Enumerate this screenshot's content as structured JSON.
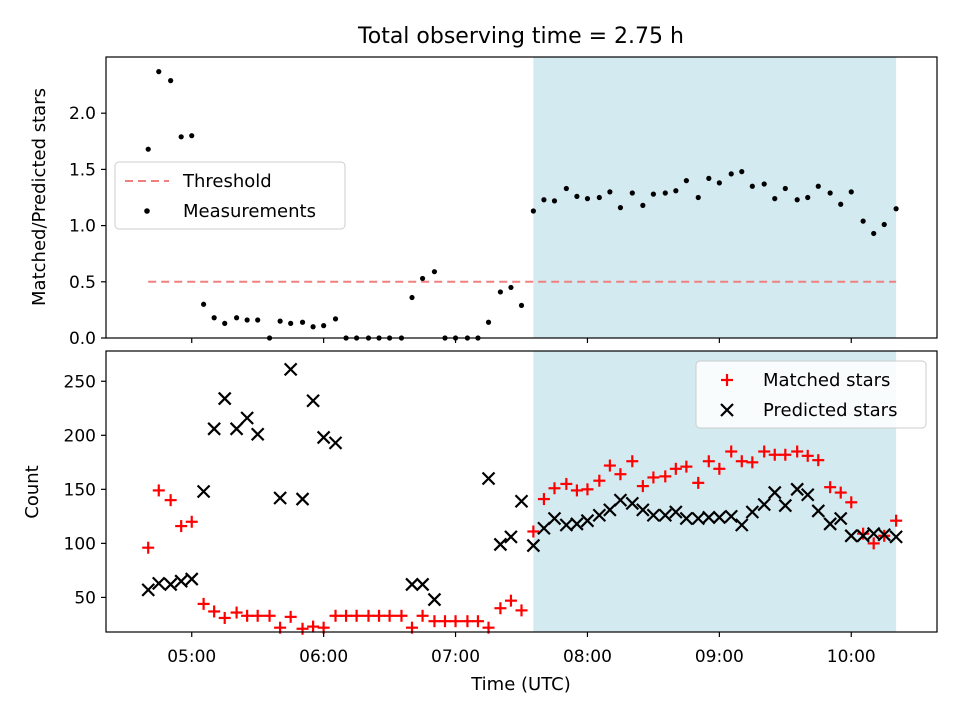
{
  "chart_data": {
    "title": "Total observing time = 2.75 h",
    "xlabel": "Time (UTC)",
    "x_ticks": [
      "05:00",
      "06:00",
      "07:00",
      "08:00",
      "09:00",
      "10:00"
    ],
    "x_tick_hours": [
      5,
      6,
      7,
      8,
      9,
      10
    ],
    "xlim_hours": [
      4.35,
      10.65
    ],
    "observing_window_hours": [
      7.59,
      10.34
    ],
    "observing_window_color": "#d4eaf1",
    "panels": [
      {
        "type": "scatter",
        "ylabel": "Matched/Predicted stars",
        "ylim": [
          0,
          2.5
        ],
        "yticks": [
          "0.0",
          "0.5",
          "1.0",
          "1.5",
          "2.0"
        ],
        "ytick_values": [
          0,
          0.5,
          1.0,
          1.5,
          2.0
        ],
        "legend_position": "center-left",
        "threshold": {
          "name": "Threshold",
          "value": 0.5,
          "x_range_hours": [
            4.67,
            10.34
          ],
          "color": "#f08080"
        },
        "series": [
          {
            "name": "Measurements",
            "color": "#000000",
            "points": [
              [
                4.67,
                1.68
              ],
              [
                4.75,
                2.37
              ],
              [
                4.84,
                2.29
              ],
              [
                4.92,
                1.79
              ],
              [
                5.0,
                1.8
              ],
              [
                5.09,
                0.3
              ],
              [
                5.17,
                0.18
              ],
              [
                5.25,
                0.13
              ],
              [
                5.34,
                0.18
              ],
              [
                5.42,
                0.16
              ],
              [
                5.5,
                0.16
              ],
              [
                5.59,
                0.0
              ],
              [
                5.67,
                0.15
              ],
              [
                5.75,
                0.13
              ],
              [
                5.84,
                0.14
              ],
              [
                5.92,
                0.1
              ],
              [
                6.0,
                0.11
              ],
              [
                6.09,
                0.17
              ],
              [
                6.17,
                0.0
              ],
              [
                6.25,
                0.0
              ],
              [
                6.34,
                0.0
              ],
              [
                6.42,
                0.0
              ],
              [
                6.5,
                0.0
              ],
              [
                6.59,
                0.0
              ],
              [
                6.67,
                0.36
              ],
              [
                6.75,
                0.53
              ],
              [
                6.84,
                0.59
              ],
              [
                6.92,
                0.0
              ],
              [
                7.0,
                0.0
              ],
              [
                7.09,
                0.0
              ],
              [
                7.17,
                0.0
              ],
              [
                7.25,
                0.14
              ],
              [
                7.34,
                0.41
              ],
              [
                7.42,
                0.45
              ],
              [
                7.5,
                0.29
              ],
              [
                7.59,
                1.13
              ],
              [
                7.67,
                1.23
              ],
              [
                7.75,
                1.22
              ],
              [
                7.84,
                1.33
              ],
              [
                7.92,
                1.26
              ],
              [
                8.0,
                1.24
              ],
              [
                8.09,
                1.25
              ],
              [
                8.17,
                1.3
              ],
              [
                8.25,
                1.16
              ],
              [
                8.34,
                1.29
              ],
              [
                8.42,
                1.18
              ],
              [
                8.5,
                1.28
              ],
              [
                8.59,
                1.29
              ],
              [
                8.67,
                1.31
              ],
              [
                8.75,
                1.4
              ],
              [
                8.84,
                1.25
              ],
              [
                8.92,
                1.42
              ],
              [
                9.0,
                1.38
              ],
              [
                9.09,
                1.46
              ],
              [
                9.17,
                1.48
              ],
              [
                9.25,
                1.35
              ],
              [
                9.34,
                1.37
              ],
              [
                9.42,
                1.24
              ],
              [
                9.5,
                1.33
              ],
              [
                9.59,
                1.23
              ],
              [
                9.67,
                1.25
              ],
              [
                9.75,
                1.35
              ],
              [
                9.84,
                1.29
              ],
              [
                9.92,
                1.19
              ],
              [
                10.0,
                1.3
              ],
              [
                10.09,
                1.04
              ],
              [
                10.17,
                0.93
              ],
              [
                10.25,
                1.01
              ],
              [
                10.34,
                1.15
              ]
            ]
          }
        ]
      },
      {
        "type": "scatter",
        "ylabel": "Count",
        "ylim": [
          18,
          278
        ],
        "yticks": [
          "50",
          "100",
          "150",
          "200",
          "250"
        ],
        "ytick_values": [
          50,
          100,
          150,
          200,
          250
        ],
        "legend_position": "top-right",
        "series": [
          {
            "name": "Matched stars",
            "marker": "plus",
            "color": "#ff0000",
            "points": [
              [
                4.67,
                96
              ],
              [
                4.75,
                149
              ],
              [
                4.84,
                140
              ],
              [
                4.92,
                116
              ],
              [
                5.0,
                120
              ],
              [
                5.09,
                44
              ],
              [
                5.17,
                37
              ],
              [
                5.25,
                31
              ],
              [
                5.34,
                36
              ],
              [
                5.42,
                33
              ],
              [
                5.5,
                33
              ],
              [
                5.59,
                33
              ],
              [
                5.67,
                22
              ],
              [
                5.75,
                32
              ],
              [
                5.84,
                21
              ],
              [
                5.92,
                23
              ],
              [
                6.0,
                22
              ],
              [
                6.09,
                33
              ],
              [
                6.17,
                33
              ],
              [
                6.25,
                33
              ],
              [
                6.34,
                33
              ],
              [
                6.42,
                33
              ],
              [
                6.5,
                33
              ],
              [
                6.59,
                33
              ],
              [
                6.67,
                22
              ],
              [
                6.75,
                33
              ],
              [
                6.84,
                28
              ],
              [
                6.92,
                28
              ],
              [
                7.0,
                28
              ],
              [
                7.09,
                28
              ],
              [
                7.17,
                28
              ],
              [
                7.25,
                22
              ],
              [
                7.34,
                40
              ],
              [
                7.42,
                47
              ],
              [
                7.5,
                38
              ],
              [
                7.59,
                111
              ],
              [
                7.67,
                141
              ],
              [
                7.75,
                151
              ],
              [
                7.84,
                155
              ],
              [
                7.92,
                149
              ],
              [
                8.0,
                150
              ],
              [
                8.09,
                158
              ],
              [
                8.17,
                172
              ],
              [
                8.25,
                164
              ],
              [
                8.34,
                176
              ],
              [
                8.42,
                153
              ],
              [
                8.5,
                161
              ],
              [
                8.59,
                162
              ],
              [
                8.67,
                169
              ],
              [
                8.75,
                171
              ],
              [
                8.84,
                156
              ],
              [
                8.92,
                176
              ],
              [
                9.0,
                169
              ],
              [
                9.09,
                185
              ],
              [
                9.17,
                176
              ],
              [
                9.25,
                175
              ],
              [
                9.34,
                185
              ],
              [
                9.42,
                182
              ],
              [
                9.5,
                182
              ],
              [
                9.59,
                185
              ],
              [
                9.67,
                181
              ],
              [
                9.75,
                177
              ],
              [
                9.84,
                152
              ],
              [
                9.92,
                147
              ],
              [
                10.0,
                138
              ],
              [
                10.09,
                109
              ],
              [
                10.17,
                100
              ],
              [
                10.25,
                107
              ],
              [
                10.34,
                121
              ]
            ]
          },
          {
            "name": "Predicted stars",
            "marker": "x",
            "color": "#000000",
            "points": [
              [
                4.67,
                57
              ],
              [
                4.75,
                63
              ],
              [
                4.84,
                62
              ],
              [
                4.92,
                65
              ],
              [
                5.0,
                67
              ],
              [
                5.09,
                148
              ],
              [
                5.17,
                206
              ],
              [
                5.25,
                234
              ],
              [
                5.34,
                206
              ],
              [
                5.42,
                216
              ],
              [
                5.5,
                201
              ],
              [
                5.67,
                142
              ],
              [
                5.75,
                261
              ],
              [
                5.84,
                141
              ],
              [
                5.92,
                232
              ],
              [
                6.0,
                198
              ],
              [
                6.09,
                193
              ],
              [
                6.67,
                62
              ],
              [
                6.75,
                62
              ],
              [
                6.84,
                48
              ],
              [
                7.25,
                160
              ],
              [
                7.34,
                99
              ],
              [
                7.42,
                106
              ],
              [
                7.5,
                139
              ],
              [
                7.59,
                98
              ],
              [
                7.67,
                114
              ],
              [
                7.75,
                123
              ],
              [
                7.84,
                117
              ],
              [
                7.92,
                118
              ],
              [
                8.0,
                121
              ],
              [
                8.09,
                126
              ],
              [
                8.17,
                131
              ],
              [
                8.25,
                140
              ],
              [
                8.34,
                137
              ],
              [
                8.42,
                131
              ],
              [
                8.5,
                126
              ],
              [
                8.59,
                126
              ],
              [
                8.67,
                129
              ],
              [
                8.75,
                123
              ],
              [
                8.84,
                123
              ],
              [
                8.92,
                124
              ],
              [
                9.0,
                124
              ],
              [
                9.09,
                125
              ],
              [
                9.17,
                117
              ],
              [
                9.25,
                129
              ],
              [
                9.34,
                136
              ],
              [
                9.42,
                147
              ],
              [
                9.5,
                135
              ],
              [
                9.59,
                150
              ],
              [
                9.67,
                145
              ],
              [
                9.75,
                130
              ],
              [
                9.84,
                118
              ],
              [
                9.92,
                123
              ],
              [
                10.0,
                107
              ],
              [
                10.09,
                107
              ],
              [
                10.17,
                109
              ],
              [
                10.25,
                108
              ],
              [
                10.34,
                106
              ]
            ]
          }
        ]
      }
    ]
  }
}
